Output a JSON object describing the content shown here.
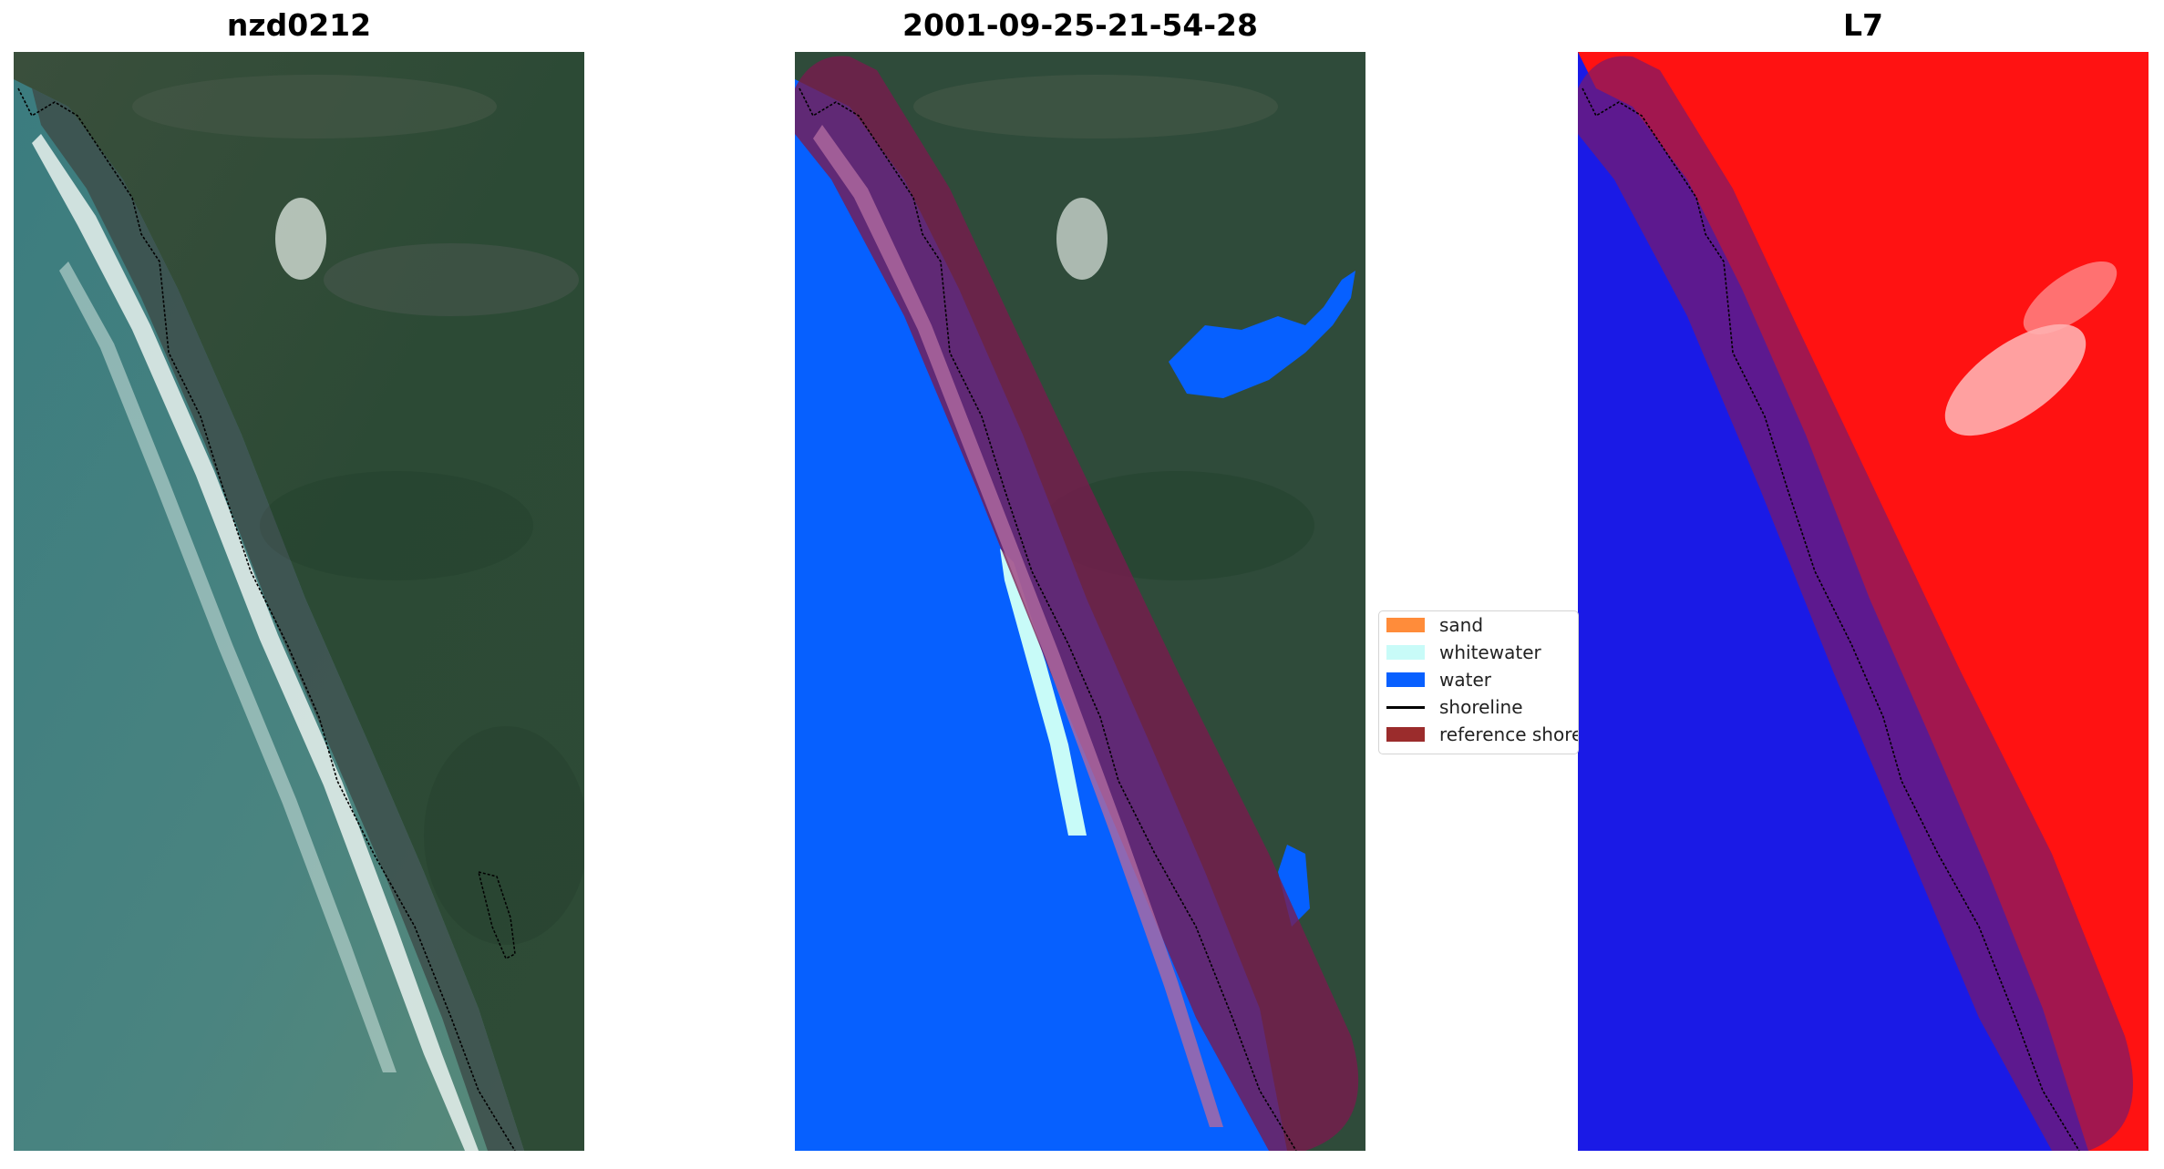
{
  "panels": [
    {
      "title": "nzd0212",
      "kind": "rgb"
    },
    {
      "title": "2001-09-25-21-54-28",
      "kind": "classified"
    },
    {
      "title": "L7",
      "kind": "index"
    }
  ],
  "legend": {
    "items": [
      {
        "label": "sand",
        "color": "#ff8c3a",
        "type": "patch"
      },
      {
        "label": "whitewater",
        "color": "#c8fbf8",
        "type": "patch"
      },
      {
        "label": "water",
        "color": "#0860ff",
        "type": "patch"
      },
      {
        "label": "shoreline",
        "color": "#000000",
        "type": "line"
      },
      {
        "label": "reference shoreline buffer",
        "color": "#9b2c2c",
        "type": "patch"
      }
    ]
  },
  "colors": {
    "ocean_rgb": "#3f7d80",
    "land_rgb": "#2f4e3a",
    "water_class": "#0660ff",
    "buffer_overlay": "#7a1a4e",
    "index_land": "#ff1010",
    "index_water": "#1a1ae6"
  }
}
